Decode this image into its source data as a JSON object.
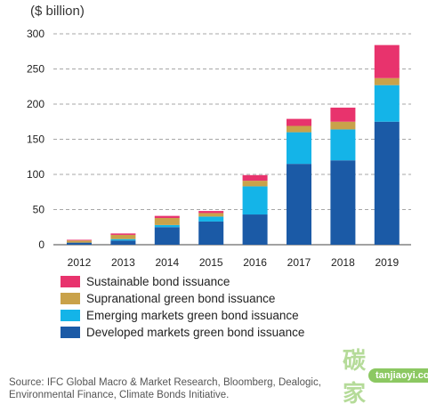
{
  "chart_data": {
    "type": "bar",
    "stacked": true,
    "unit_label": "($ billion)",
    "categories": [
      "2012",
      "2013",
      "2014",
      "2015",
      "2016",
      "2017",
      "2018",
      "2019"
    ],
    "ylim": [
      0,
      300
    ],
    "yticks": [
      0,
      50,
      100,
      150,
      200,
      250,
      300
    ],
    "grid": "horizontal-dashed",
    "legend_position": "bottom",
    "series": [
      {
        "name": "Developed markets green bond issuance",
        "color": "#1b5aa6",
        "values": [
          3,
          6,
          25,
          33,
          43,
          115,
          120,
          175
        ]
      },
      {
        "name": "Emerging markets green bond issuance",
        "color": "#14b4e8",
        "values": [
          0,
          2,
          3,
          7,
          40,
          45,
          44,
          52
        ]
      },
      {
        "name": "Supranational green bond issuance",
        "color": "#c9a24a",
        "values": [
          3,
          6,
          10,
          5,
          8,
          9,
          11,
          10
        ]
      },
      {
        "name": "Sustainable bond issuance",
        "color": "#e8336d",
        "values": [
          1,
          2,
          3,
          3,
          8,
          10,
          20,
          47
        ]
      }
    ],
    "legend_order": [
      "Sustainable bond issuance",
      "Supranational green bond issuance",
      "Emerging markets green bond issuance",
      "Developed markets green bond issuance"
    ]
  },
  "source_line1": "Source: IFC Global Macro & Market Research, Bloomberg, Dealogic,",
  "source_line2": "Environmental Finance, Climate Bonds Initiative.",
  "watermark": {
    "logo_text": "碳家",
    "url_text": "tanjiaoyi.com"
  }
}
